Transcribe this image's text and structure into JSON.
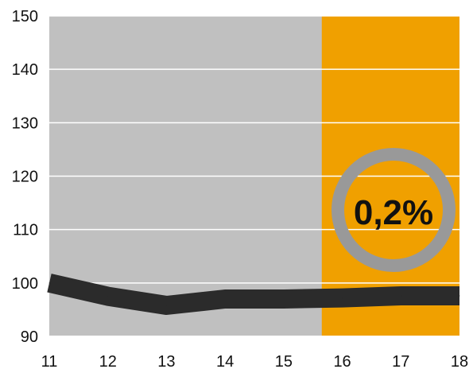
{
  "chart_data": {
    "type": "line",
    "title": "",
    "xlabel": "",
    "ylabel": "",
    "x": [
      11,
      12,
      13,
      14,
      15,
      16,
      17,
      18
    ],
    "series": [
      {
        "values": [
          100,
          97.5,
          95.8,
          97,
          97,
          97.2,
          97.6,
          97.6
        ],
        "color": "#2b2b2b"
      }
    ],
    "xlim": [
      11,
      18
    ],
    "ylim": [
      90,
      150
    ],
    "yticks": [
      90,
      100,
      110,
      120,
      130,
      140,
      150
    ],
    "xticks": [
      11,
      12,
      13,
      14,
      15,
      16,
      17,
      18
    ],
    "ytick_labels": [
      "90",
      "100",
      "110",
      "120",
      "130",
      "140",
      "150"
    ],
    "xtick_labels": [
      "11",
      "12",
      "13",
      "14",
      "15",
      "16",
      "17",
      "18"
    ],
    "grid": "horizontal",
    "background_color": "#c0c0c0",
    "highlight_region": {
      "from": 15.65,
      "to": 18,
      "color": "#f0a000"
    },
    "callout": {
      "text": "0,2%",
      "ring_color": "#999999"
    }
  }
}
